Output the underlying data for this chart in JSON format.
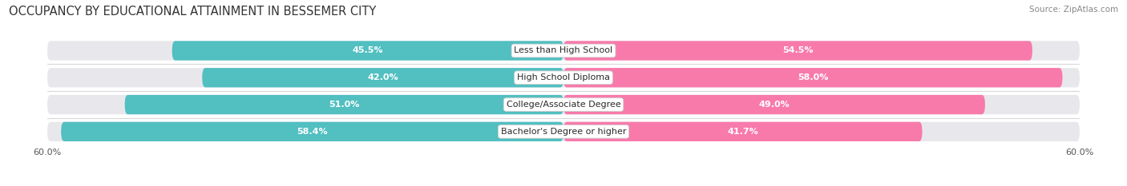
{
  "title": "OCCUPANCY BY EDUCATIONAL ATTAINMENT IN BESSEMER CITY",
  "source": "Source: ZipAtlas.com",
  "categories": [
    "Less than High School",
    "High School Diploma",
    "College/Associate Degree",
    "Bachelor's Degree or higher"
  ],
  "owner_values": [
    45.5,
    42.0,
    51.0,
    58.4
  ],
  "renter_values": [
    54.5,
    58.0,
    49.0,
    41.7
  ],
  "max_val": 60.0,
  "owner_color": "#52bfc1",
  "renter_color": "#f87aab",
  "bar_bg_color": "#e8e8ec",
  "bar_height": 0.72,
  "title_fontsize": 10.5,
  "label_fontsize": 8,
  "tick_fontsize": 8,
  "source_fontsize": 7.5,
  "legend_fontsize": 8,
  "value_fontsize": 8,
  "background_color": "#ffffff"
}
